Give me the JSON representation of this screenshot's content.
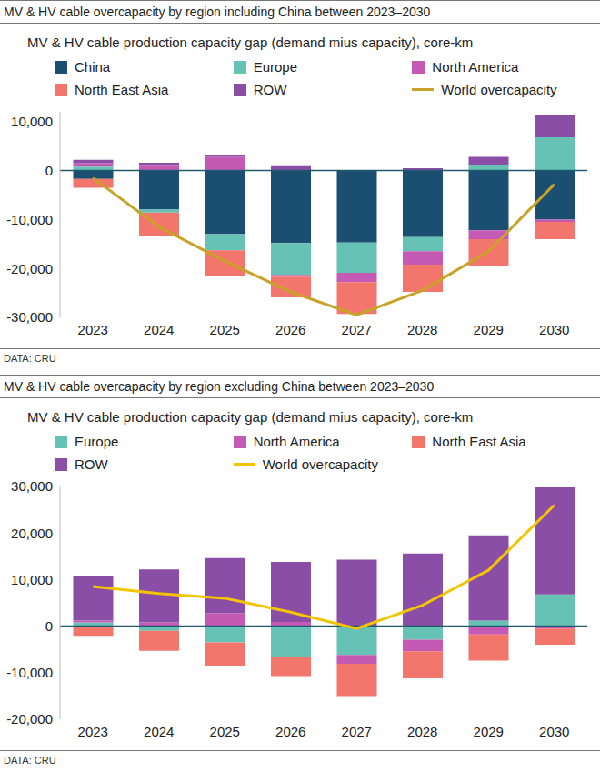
{
  "chart_data": [
    {
      "type": "bar",
      "stacked": true,
      "grid": false,
      "legend": "top",
      "title": "MV & HV cable overcapacity by region including China between 2023–2030",
      "subtitle": "MV & HV cable production capacity gap (demand mius capacity), core-km",
      "source": "DATA: CRU",
      "categories": [
        "2023",
        "2024",
        "2025",
        "2026",
        "2027",
        "2028",
        "2029",
        "2030"
      ],
      "ylim": [
        -30000,
        12000
      ],
      "yticks": [
        {
          "value": -30000,
          "label": "-30,000"
        },
        {
          "value": -20000,
          "label": "-20,000"
        },
        {
          "value": -10000,
          "label": "-10,000"
        },
        0,
        {
          "value": 10000,
          "label": "10,000"
        }
      ],
      "series": [
        {
          "name": "China",
          "color": "#1b4f72",
          "type": "bar",
          "values": [
            -1700,
            -8000,
            -13000,
            -14800,
            -14700,
            -13600,
            -12200,
            -10000
          ]
        },
        {
          "name": "Europe",
          "color": "#66c2b5",
          "type": "bar",
          "values": [
            800,
            -600,
            -3300,
            -6500,
            -6200,
            -2900,
            1100,
            6800
          ]
        },
        {
          "name": "North America",
          "color": "#c45ab3",
          "type": "bar",
          "values": [
            700,
            1000,
            2800,
            -400,
            -1900,
            -2700,
            -1800,
            -500
          ]
        },
        {
          "name": "North East Asia",
          "color": "#f2766b",
          "type": "bar",
          "values": [
            -1800,
            -4800,
            -5300,
            -4200,
            -6500,
            -5600,
            -5400,
            -3500
          ]
        },
        {
          "name": "ROW",
          "color": "#8b4ea6",
          "type": "bar",
          "values": [
            700,
            600,
            300,
            900,
            0,
            500,
            1700,
            4500
          ]
        },
        {
          "name": "World overcapacity",
          "color": "#c9a227",
          "type": "line",
          "values": [
            -1500,
            -11500,
            -18500,
            -24800,
            -29500,
            -24500,
            -16500,
            -2800
          ]
        }
      ]
    },
    {
      "type": "bar",
      "stacked": true,
      "grid": false,
      "legend": "top",
      "title": "MV & HV cable overcapacity by region excluding China between 2023–2030",
      "subtitle": "MV & HV cable production capacity gap (demand mius capacity), core-km",
      "source": "DATA: CRU",
      "categories": [
        "2023",
        "2024",
        "2025",
        "2026",
        "2027",
        "2028",
        "2029",
        "2030"
      ],
      "ylim": [
        -20000,
        30000
      ],
      "yticks": [
        {
          "value": -20000,
          "label": "-20,000"
        },
        {
          "value": -10000,
          "label": "-10,000"
        },
        0,
        {
          "value": 10000,
          "label": "10,000"
        },
        {
          "value": 20000,
          "label": "20,000"
        },
        {
          "value": 30000,
          "label": "30,000"
        }
      ],
      "series": [
        {
          "name": "Europe",
          "color": "#66c2b5",
          "type": "bar",
          "values": [
            800,
            -1000,
            -3500,
            -6500,
            -6200,
            -2900,
            1200,
            6800
          ]
        },
        {
          "name": "North America",
          "color": "#c45ab3",
          "type": "bar",
          "values": [
            400,
            800,
            2800,
            900,
            -1900,
            -2500,
            -1800,
            -500
          ]
        },
        {
          "name": "North East Asia",
          "color": "#f2766b",
          "type": "bar",
          "values": [
            -2100,
            -4300,
            -5000,
            -4200,
            -6900,
            -5800,
            -5600,
            -3500
          ]
        },
        {
          "name": "ROW",
          "color": "#8b4ea6",
          "type": "bar",
          "values": [
            9500,
            11400,
            11800,
            12900,
            14300,
            15600,
            18300,
            23000
          ]
        },
        {
          "name": "World overcapacity",
          "color": "#f5c400",
          "type": "line",
          "values": [
            8500,
            7000,
            6000,
            3000,
            -500,
            4500,
            12000,
            26000
          ]
        }
      ]
    }
  ]
}
